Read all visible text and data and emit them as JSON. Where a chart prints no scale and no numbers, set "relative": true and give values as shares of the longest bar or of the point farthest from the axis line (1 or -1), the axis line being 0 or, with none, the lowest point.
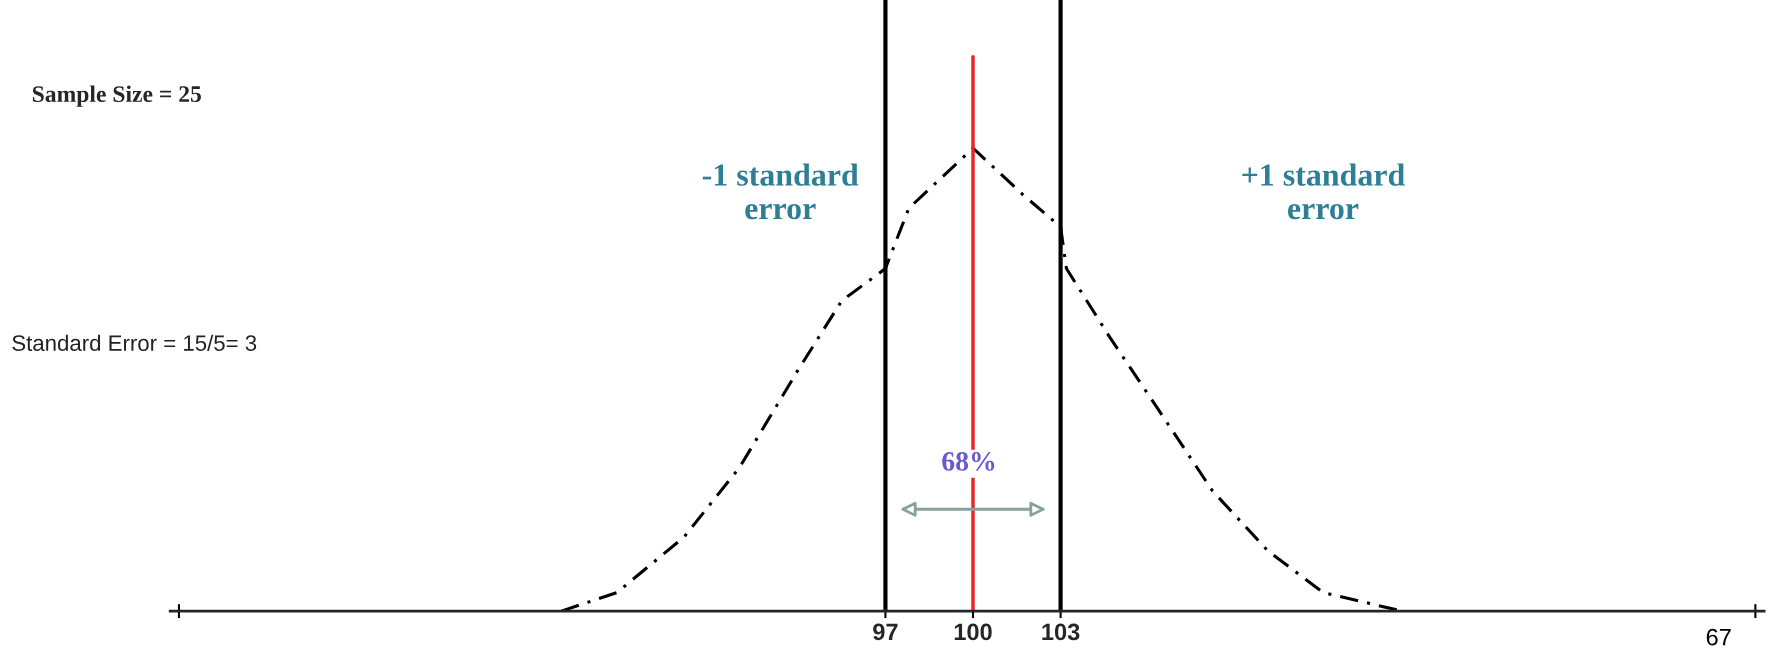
{
  "chart_data": {
    "type": "line",
    "title": "Sample Size = 25",
    "relative": true,
    "x": [
      85.9,
      87.8,
      90.1,
      92.0,
      94.0,
      95.5,
      97.0,
      97.8,
      100,
      101.7,
      103,
      103.2,
      104.7,
      106.3,
      108.2,
      110.1,
      112.0,
      114.7
    ],
    "series": [
      {
        "color": "#000000",
        "values": [
          0,
          0.04,
          0.16,
          0.31,
          0.52,
          0.67,
          0.74,
          0.87,
          1,
          0.9,
          0.83,
          0.74,
          0.59,
          0.44,
          0.26,
          0.13,
          0.04,
          0
        ]
      }
    ],
    "line_style": "dashed",
    "marker": "none",
    "grid": false,
    "legend": false,
    "tick_labels": "x",
    "xlim": [
      72.5,
      127.1
    ],
    "xticks": [
      {
        "value": 72.8,
        "label": null
      },
      97,
      100,
      103,
      {
        "value": 126.8,
        "label": null
      }
    ],
    "ref_lines": [
      {
        "axis": "x",
        "value": 97,
        "color": "#000000"
      },
      {
        "axis": "x",
        "value": 100,
        "color": "#e8262a"
      },
      {
        "axis": "x",
        "value": 103,
        "color": "#000000"
      }
    ],
    "annotations": [
      "-1 standard\nerror",
      "+1 standard\nerror",
      "Standard Error = 15/5= 3",
      "68%",
      "67"
    ]
  }
}
